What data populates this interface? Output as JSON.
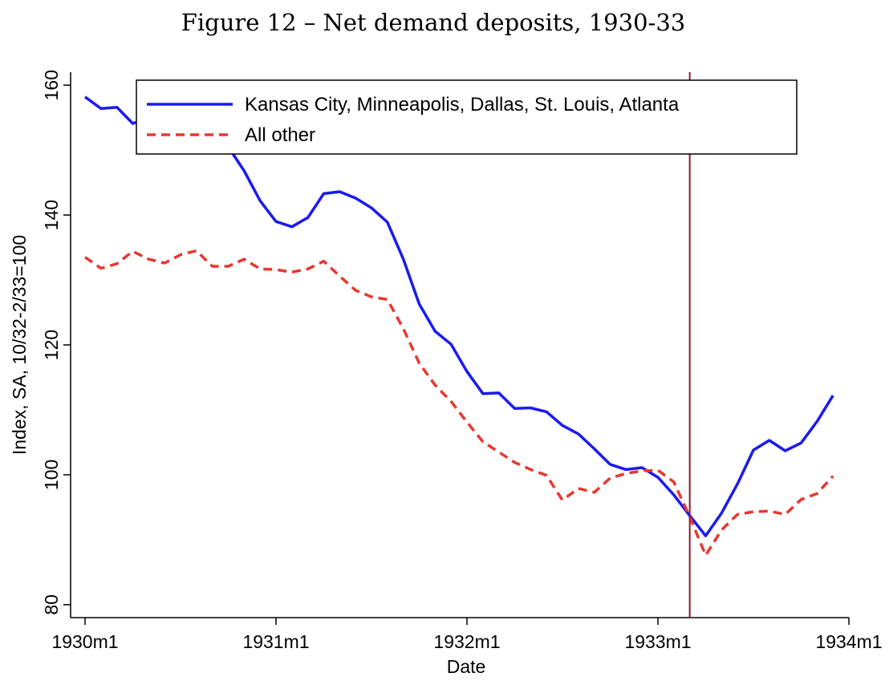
{
  "chart_data": {
    "type": "line",
    "title": "Figure 12 – Net demand deposits, 1930-33",
    "xlabel": "Date",
    "ylabel": "Index, SA, 10/32-2/33=100",
    "x_ticks": [
      "1930m1",
      "1931m1",
      "1932m1",
      "1933m1",
      "1934m1"
    ],
    "y_ticks": [
      80,
      100,
      120,
      140,
      160
    ],
    "ylim": [
      78,
      162
    ],
    "xlim": [
      "1930m1",
      "1934m1"
    ],
    "grid": false,
    "legend_position": "top",
    "vline": "1933m3",
    "vline_color": "#8b1a2a",
    "x": [
      "1930m1",
      "1930m2",
      "1930m3",
      "1930m4",
      "1930m5",
      "1930m6",
      "1930m7",
      "1930m8",
      "1930m9",
      "1930m10",
      "1930m11",
      "1930m12",
      "1931m1",
      "1931m2",
      "1931m3",
      "1931m4",
      "1931m5",
      "1931m6",
      "1931m7",
      "1931m8",
      "1931m9",
      "1931m10",
      "1931m11",
      "1931m12",
      "1932m1",
      "1932m2",
      "1932m3",
      "1932m4",
      "1932m5",
      "1932m6",
      "1932m7",
      "1932m8",
      "1932m9",
      "1932m10",
      "1932m11",
      "1932m12",
      "1933m1",
      "1933m2",
      "1933m3",
      "1933m4",
      "1933m5",
      "1933m6",
      "1933m7",
      "1933m8",
      "1933m9",
      "1933m10",
      "1933m11",
      "1933m12"
    ],
    "series": [
      {
        "name": "Kansas City, Minneapolis, Dallas, St. Louis, Atlanta",
        "color": "#1a1aee",
        "dash": "solid",
        "values": [
          158.2,
          156.4,
          156.6,
          154.1,
          155.0,
          155.5,
          155.2,
          155.2,
          153.5,
          150.5,
          146.8,
          142.2,
          139.0,
          138.2,
          139.6,
          143.3,
          143.6,
          142.6,
          141.1,
          138.9,
          133.2,
          126.3,
          122.1,
          120.1,
          115.9,
          112.5,
          112.6,
          110.2,
          110.3,
          109.7,
          107.6,
          106.3,
          104.0,
          101.6,
          100.8,
          101.1,
          99.6,
          96.9,
          93.7,
          90.6,
          94.1,
          98.6,
          103.8,
          105.3,
          103.7,
          104.9,
          108.2,
          112.2
        ]
      },
      {
        "name": "All other",
        "color": "#e8372e",
        "dash": "dashed",
        "values": [
          133.5,
          131.8,
          132.5,
          134.4,
          133.2,
          132.6,
          133.9,
          134.5,
          132.1,
          132.1,
          133.2,
          131.7,
          131.6,
          131.2,
          131.7,
          132.9,
          130.6,
          128.4,
          127.4,
          127.0,
          122.5,
          117.2,
          113.8,
          111.3,
          108.1,
          105.1,
          103.5,
          101.9,
          100.8,
          99.9,
          96.1,
          97.9,
          97.3,
          99.5,
          100.2,
          100.6,
          100.7,
          98.9,
          93.5,
          87.6,
          91.5,
          93.9,
          94.3,
          94.4,
          93.9,
          96.2,
          97.1,
          99.8
        ]
      }
    ]
  }
}
